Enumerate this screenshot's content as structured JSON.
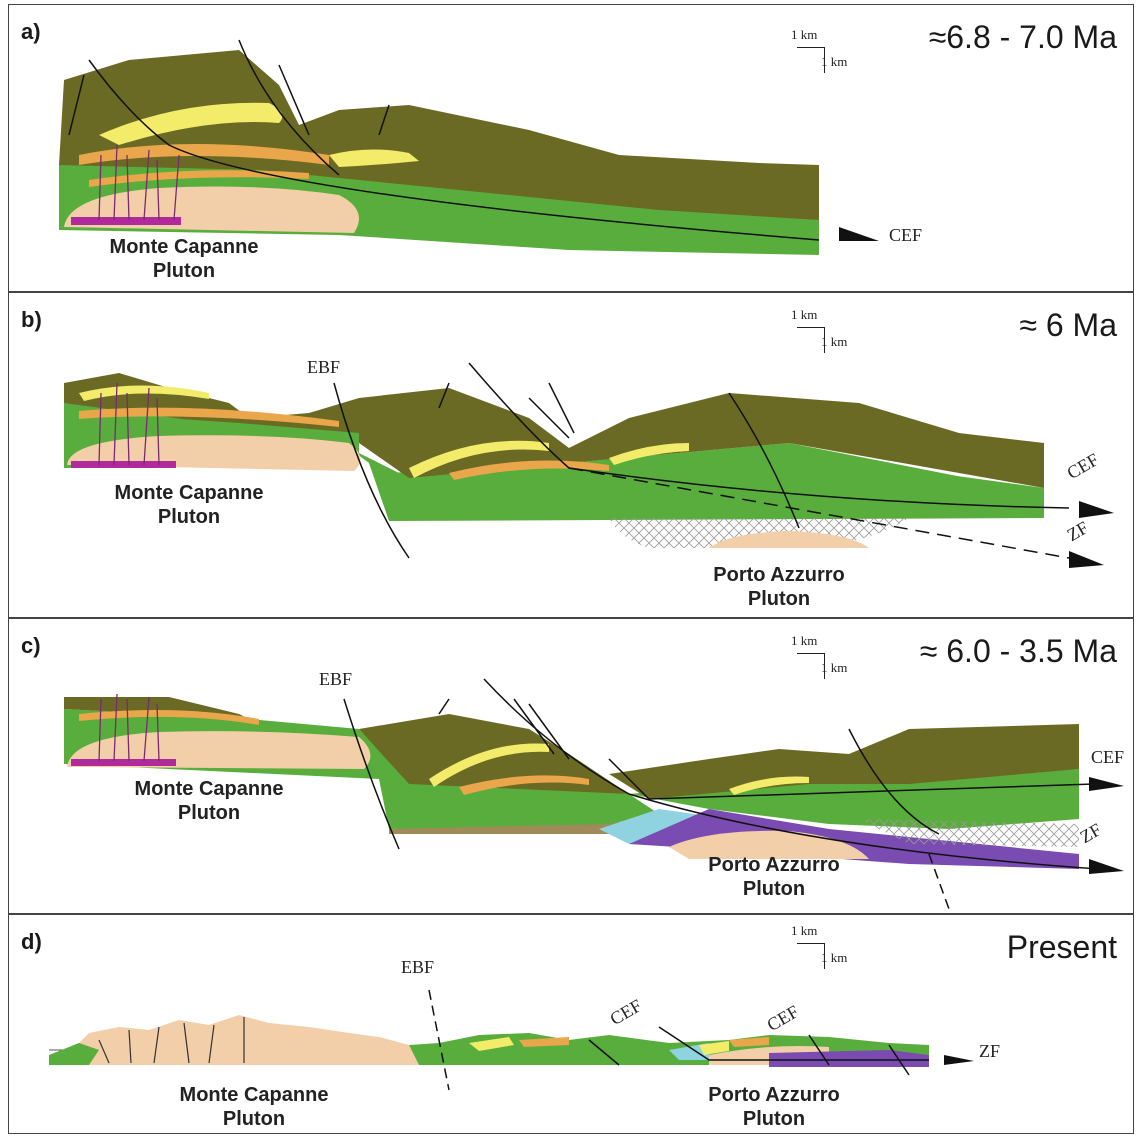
{
  "panels": [
    {
      "label": "a)",
      "age": "≈6.8 - 7.0 Ma",
      "scale": {
        "vertical": "1 km",
        "horizontal": "1 km"
      },
      "plutons": [
        [
          "Monte Capanne",
          "Pluton"
        ]
      ],
      "faults": [
        "CEF"
      ]
    },
    {
      "label": "b)",
      "age": "≈ 6 Ma",
      "scale": {
        "vertical": "1 km",
        "horizontal": "1 km"
      },
      "plutons": [
        [
          "Monte Capanne",
          "Pluton"
        ],
        [
          "Porto Azzurro",
          "Pluton"
        ]
      ],
      "faults": [
        "EBF",
        "CEF",
        "ZF"
      ]
    },
    {
      "label": "c)",
      "age": "≈ 6.0 - 3.5 Ma",
      "scale": {
        "vertical": "1 km",
        "horizontal": "1 km"
      },
      "plutons": [
        [
          "Monte Capanne",
          "Pluton"
        ],
        [
          "Porto Azzurro",
          "Pluton"
        ]
      ],
      "faults": [
        "EBF",
        "CEF",
        "ZF"
      ]
    },
    {
      "label": "d)",
      "age": "Present",
      "scale": {
        "vertical": "1 km",
        "horizontal": "1 km"
      },
      "plutons": [
        [
          "Monte Capanne",
          "Pluton"
        ],
        [
          "Porto Azzurro",
          "Pluton"
        ]
      ],
      "faults": [
        "EBF",
        "CEF",
        "CEF",
        "ZF"
      ]
    }
  ],
  "colors": {
    "upper_unit": "#6b6a24",
    "green_unit": "#58ad3c",
    "yellow_layers": "#f2ec6a",
    "orange_layers": "#e9a64a",
    "pluton": "#f2cfa8",
    "dikes_base": "#b02a9b",
    "purple_unit": "#7a4bb0",
    "cyan_unit": "#8fd3e0",
    "brown_unit": "#a08a5a",
    "hatched_zone": "#d8d8d8"
  }
}
